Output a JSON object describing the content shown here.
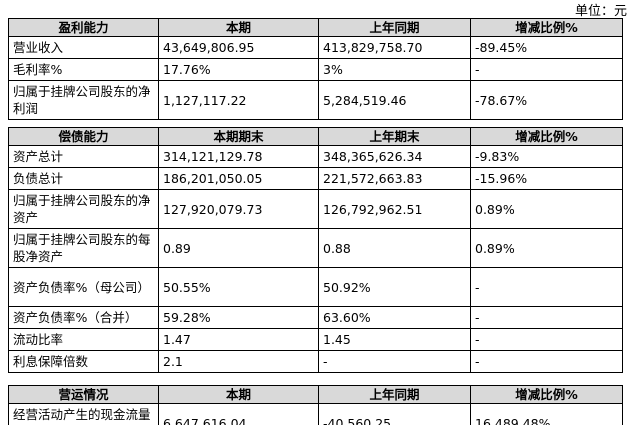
{
  "unit": "单位：元",
  "sections": [
    {
      "header": [
        "盈利能力",
        "本期",
        "上年同期",
        "增减比例%"
      ],
      "rows": [
        [
          "营业收入",
          "43,649,806.95",
          "413,829,758.70",
          "-89.45%"
        ],
        [
          "毛利率%",
          "17.76%",
          "3%",
          "-"
        ],
        [
          "归属于挂牌公司股东的净利润",
          "1,127,117.22",
          "5,284,519.46",
          "-78.67%"
        ]
      ]
    },
    {
      "header": [
        "偿债能力",
        "本期期末",
        "上年期末",
        "增减比例%"
      ],
      "rows": [
        [
          "资产总计",
          "314,121,129.78",
          "348,365,626.34",
          "-9.83%"
        ],
        [
          "负债总计",
          "186,201,050.05",
          "221,572,663.83",
          "-15.96%"
        ],
        [
          "归属于挂牌公司股东的净资产",
          "127,920,079.73",
          "126,792,962.51",
          "0.89%"
        ],
        [
          "归属于挂牌公司股东的每股净资产",
          "0.89",
          "0.88",
          "0.89%"
        ],
        [
          "资产负债率%（母公司）",
          "50.55%",
          "50.92%",
          "-"
        ],
        [
          "资产负债率%（合并）",
          "59.28%",
          "63.60%",
          "-"
        ],
        [
          "流动比率",
          "1.47",
          "1.45",
          "-"
        ],
        [
          "利息保障倍数",
          "2.1",
          "-",
          "-"
        ]
      ]
    },
    {
      "header": [
        "营运情况",
        "本期",
        "上年同期",
        "增减比例%"
      ],
      "rows": [
        [
          "经营活动产生的现金流量净额",
          "6,647,616.04",
          "-40,560.25",
          "16,489.48%"
        ]
      ]
    }
  ]
}
